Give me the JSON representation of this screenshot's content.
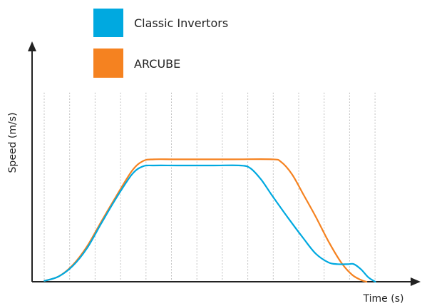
{
  "chart_data": {
    "type": "line",
    "title": "",
    "xlabel": "Time (s)",
    "ylabel": "Speed (m/s)",
    "grid": {
      "vertical_dotted": true,
      "horizontal": false
    },
    "legend_placement": "top-center",
    "xlim": [
      0,
      100
    ],
    "ylim": [
      0,
      100
    ],
    "gridlines_x": [
      0,
      7,
      14,
      21,
      28,
      35,
      42,
      49,
      56,
      63,
      70,
      77,
      84,
      91
    ],
    "series": [
      {
        "name": "Classic Invertors",
        "color": "#00A9E0",
        "points": [
          [
            3.4,
            0.5
          ],
          [
            7.3,
            3.0
          ],
          [
            11.2,
            9.0
          ],
          [
            15.1,
            19.0
          ],
          [
            19.0,
            33.0
          ],
          [
            23.0,
            47.0
          ],
          [
            27.5,
            61.0
          ],
          [
            30.5,
            65.5
          ],
          [
            33.5,
            66.0
          ],
          [
            40.0,
            66.0
          ],
          [
            50.0,
            66.0
          ],
          [
            57.2,
            66.0
          ],
          [
            60.0,
            64.5
          ],
          [
            63.0,
            58.0
          ],
          [
            66.0,
            49.0
          ],
          [
            70.5,
            36.0
          ],
          [
            74.5,
            25.0
          ],
          [
            78.0,
            16.0
          ],
          [
            81.5,
            11.0
          ],
          [
            84.0,
            10.0
          ],
          [
            87.0,
            10.0
          ],
          [
            88.5,
            10.0
          ],
          [
            90.5,
            7.0
          ],
          [
            92.5,
            2.5
          ],
          [
            94.4,
            0.0
          ]
        ]
      },
      {
        "name": "ARCUBE",
        "color": "#F58220",
        "points": [
          [
            3.4,
            0.5
          ],
          [
            7.3,
            3.0
          ],
          [
            11.2,
            9.5
          ],
          [
            15.1,
            20.0
          ],
          [
            19.0,
            34.0
          ],
          [
            23.0,
            48.0
          ],
          [
            27.5,
            63.0
          ],
          [
            30.5,
            68.5
          ],
          [
            33.5,
            69.5
          ],
          [
            40.0,
            69.5
          ],
          [
            55.0,
            69.5
          ],
          [
            66.0,
            69.5
          ],
          [
            68.5,
            68.0
          ],
          [
            71.5,
            61.0
          ],
          [
            74.5,
            50.0
          ],
          [
            78.0,
            37.0
          ],
          [
            81.5,
            23.0
          ],
          [
            85.0,
            11.0
          ],
          [
            88.0,
            4.0
          ],
          [
            90.5,
            1.0
          ],
          [
            92.0,
            0.0
          ]
        ]
      }
    ]
  }
}
